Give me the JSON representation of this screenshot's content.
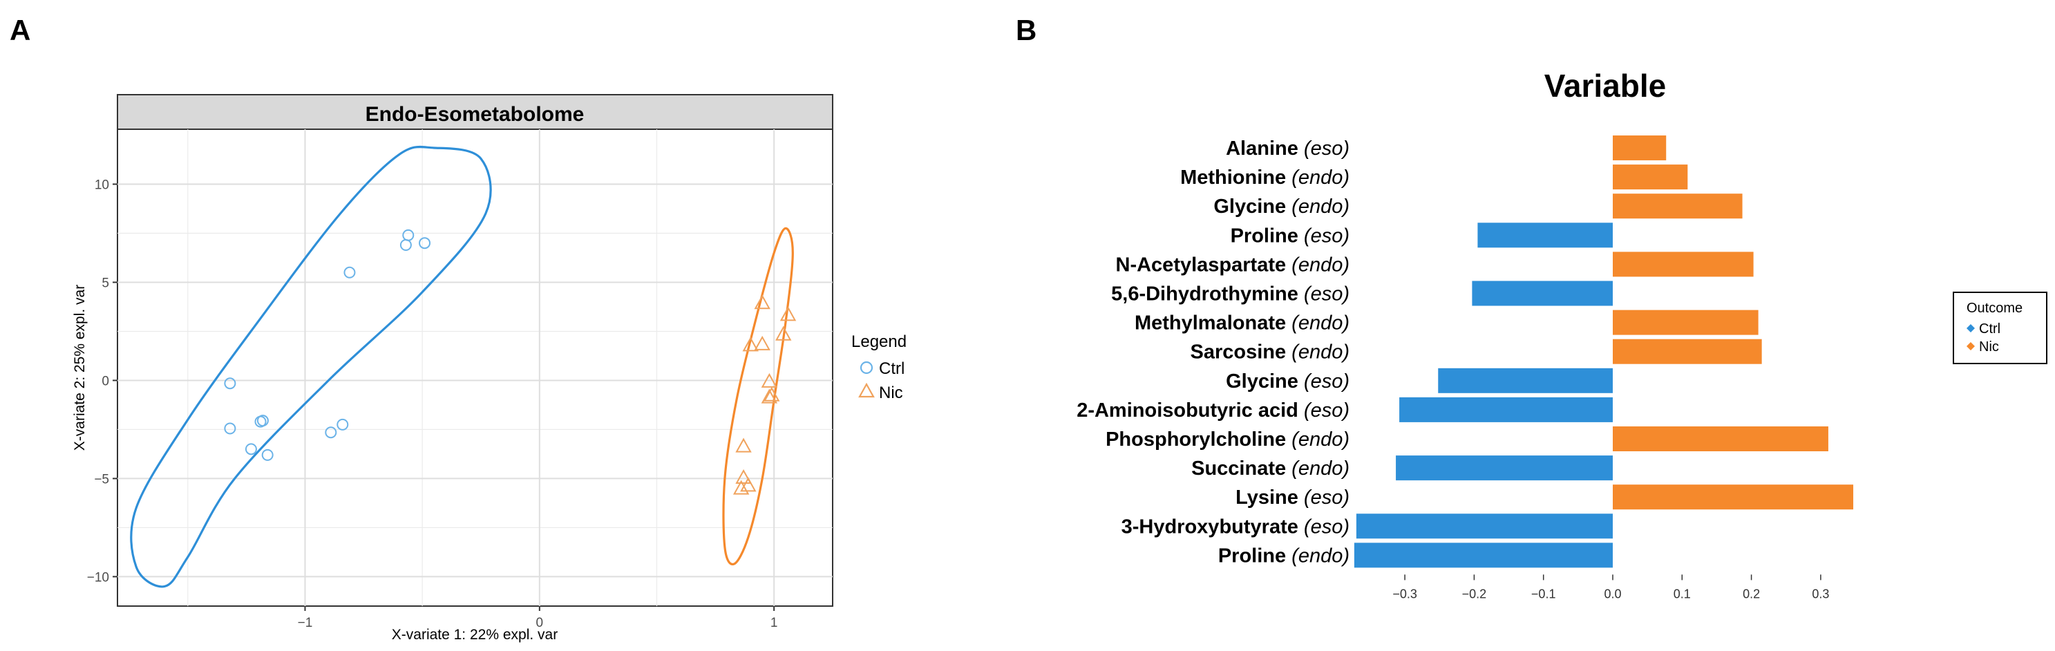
{
  "panels": {
    "a_label": "A",
    "b_label": "B"
  },
  "colors": {
    "ctrl": "#2E8FD8",
    "nic": "#F5892C",
    "ctrl_point": "#6BB3E8",
    "nic_point": "#F0A25C",
    "strip_fill": "#D9D9D9",
    "grid": "#EBEBEB"
  },
  "chart_data": [
    {
      "type": "scatter",
      "title": "Endo-Esometabolome",
      "xlabel": "X-variate 1: 22% expl. var",
      "ylabel": "X-variate 2: 25% expl. var",
      "xlim": [
        -1.8,
        1.25
      ],
      "ylim": [
        -11.5,
        12.8
      ],
      "xticks": [
        -1,
        0,
        1
      ],
      "xtick_labels": [
        "−1",
        "0",
        "1"
      ],
      "yticks": [
        -10,
        -5,
        0,
        5,
        10
      ],
      "ytick_labels": [
        "−10",
        "−5",
        "0",
        "5",
        "10"
      ],
      "legend": {
        "title": "Legend",
        "position": "right",
        "entries": [
          "Ctrl",
          "Nic"
        ]
      },
      "series": [
        {
          "name": "Ctrl",
          "marker": "circle",
          "points": [
            [
              -0.56,
              7.4
            ],
            [
              -0.57,
              6.9
            ],
            [
              -0.49,
              7.0
            ],
            [
              -0.81,
              5.5
            ],
            [
              -1.32,
              -0.15
            ],
            [
              -1.19,
              -2.1
            ],
            [
              -1.18,
              -2.05
            ],
            [
              -0.84,
              -2.25
            ],
            [
              -1.32,
              -2.45
            ],
            [
              -0.89,
              -2.65
            ],
            [
              -1.23,
              -3.5
            ],
            [
              -1.16,
              -3.8
            ]
          ],
          "ellipse": [
            [
              -0.45,
              11.85
            ],
            [
              -0.25,
              11.3
            ],
            [
              -0.23,
              8.5
            ],
            [
              -0.5,
              4.5
            ],
            [
              -0.9,
              0.0
            ],
            [
              -1.3,
              -5.0
            ],
            [
              -1.5,
              -9.0
            ],
            [
              -1.6,
              -10.5
            ],
            [
              -1.72,
              -9.5
            ],
            [
              -1.72,
              -6.5
            ],
            [
              -1.5,
              -2.0
            ],
            [
              -1.2,
              3.0
            ],
            [
              -0.85,
              8.5
            ],
            [
              -0.6,
              11.5
            ]
          ]
        },
        {
          "name": "Nic",
          "marker": "triangle",
          "points": [
            [
              0.95,
              3.95
            ],
            [
              1.06,
              3.35
            ],
            [
              1.04,
              2.35
            ],
            [
              0.9,
              1.8
            ],
            [
              0.95,
              1.85
            ],
            [
              0.98,
              -0.05
            ],
            [
              0.99,
              -0.75
            ],
            [
              0.98,
              -0.85
            ],
            [
              0.87,
              -3.35
            ],
            [
              0.87,
              -4.95
            ],
            [
              0.89,
              -5.35
            ],
            [
              0.86,
              -5.5
            ]
          ],
          "ellipse": [
            [
              1.05,
              7.75
            ],
            [
              1.08,
              6.5
            ],
            [
              1.05,
              3.0
            ],
            [
              1.0,
              -1.0
            ],
            [
              0.95,
              -5.0
            ],
            [
              0.89,
              -8.0
            ],
            [
              0.83,
              -9.35
            ],
            [
              0.79,
              -8.5
            ],
            [
              0.79,
              -5.0
            ],
            [
              0.84,
              -1.0
            ],
            [
              0.92,
              3.0
            ],
            [
              1.0,
              6.5
            ]
          ]
        }
      ]
    },
    {
      "type": "bar",
      "orientation": "horizontal",
      "title": "Variable",
      "xlim": [
        -0.38,
        0.38
      ],
      "xticks": [
        -0.3,
        -0.2,
        -0.1,
        0.0,
        0.1,
        0.2,
        0.3
      ],
      "xtick_labels": [
        "−0.3",
        "−0.2",
        "−0.1",
        "0.0",
        "0.1",
        "0.2",
        "0.3"
      ],
      "legend": {
        "title": "Outcome",
        "position": "right",
        "entries": [
          "Ctrl",
          "Nic"
        ]
      },
      "bars": [
        {
          "name": "Alanine",
          "qualifier": "(eso)",
          "value": 0.077,
          "outcome": "Nic"
        },
        {
          "name": "Methionine",
          "qualifier": "(endo)",
          "value": 0.108,
          "outcome": "Nic"
        },
        {
          "name": "Glycine",
          "qualifier": "(endo)",
          "value": 0.187,
          "outcome": "Nic"
        },
        {
          "name": "Proline",
          "qualifier": "(eso)",
          "value": -0.195,
          "outcome": "Ctrl"
        },
        {
          "name": "N-Acetylaspartate",
          "qualifier": "(endo)",
          "value": 0.203,
          "outcome": "Nic"
        },
        {
          "name": "5,6-Dihydrothymine",
          "qualifier": "(eso)",
          "value": -0.203,
          "outcome": "Ctrl"
        },
        {
          "name": "Methylmalonate",
          "qualifier": "(endo)",
          "value": 0.21,
          "outcome": "Nic"
        },
        {
          "name": "Sarcosine",
          "qualifier": "(endo)",
          "value": 0.215,
          "outcome": "Nic"
        },
        {
          "name": "Glycine",
          "qualifier": "(eso)",
          "value": -0.252,
          "outcome": "Ctrl"
        },
        {
          "name": "2-Aminoisobutyric acid",
          "qualifier": "(eso)",
          "value": -0.308,
          "outcome": "Ctrl"
        },
        {
          "name": "Phosphorylcholine",
          "qualifier": "(endo)",
          "value": 0.311,
          "outcome": "Nic"
        },
        {
          "name": "Succinate",
          "qualifier": "(endo)",
          "value": -0.313,
          "outcome": "Ctrl"
        },
        {
          "name": "Lysine",
          "qualifier": "(eso)",
          "value": 0.347,
          "outcome": "Nic"
        },
        {
          "name": "3-Hydroxybutyrate",
          "qualifier": "(eso)",
          "value": -0.37,
          "outcome": "Ctrl"
        },
        {
          "name": "Proline",
          "qualifier": "(endo)",
          "value": -0.373,
          "outcome": "Ctrl"
        }
      ]
    }
  ]
}
